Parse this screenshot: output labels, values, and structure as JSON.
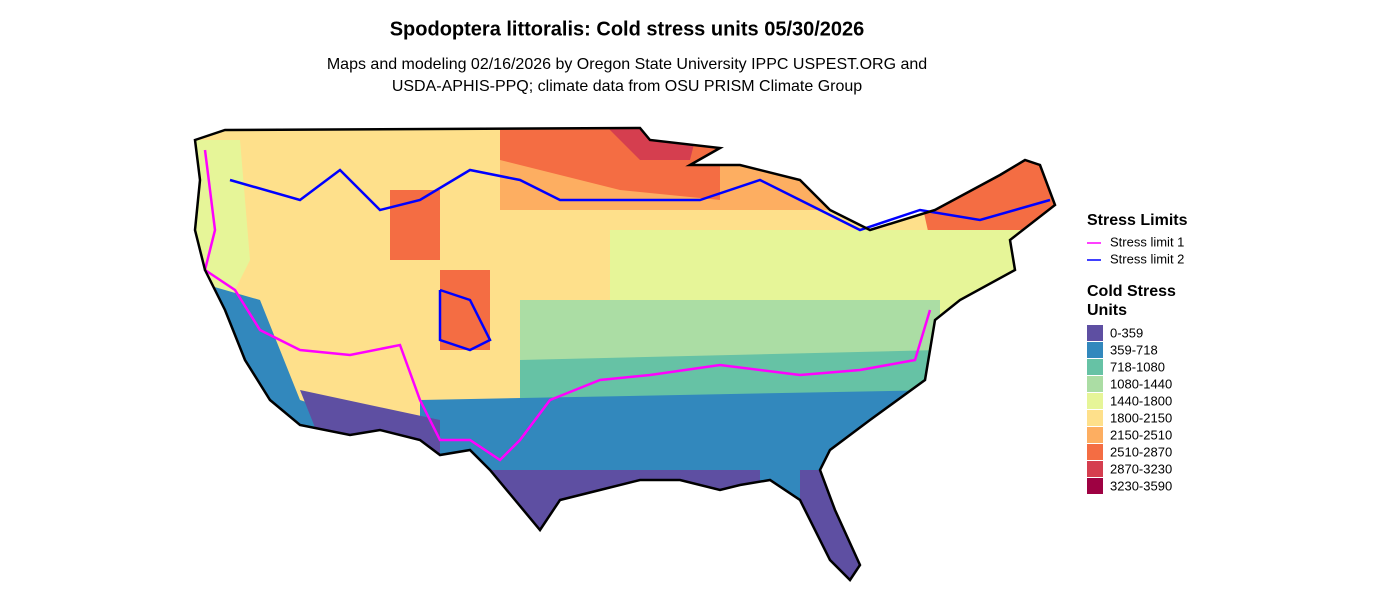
{
  "title": "Spodoptera littoralis: Cold stress units 05/30/2026",
  "subtitle": [
    "Maps and modeling 02/16/2026 by Oregon State University IPPC USPEST.ORG and",
    "USDA-APHIS-PPQ; climate data from OSU PRISM Climate Group"
  ],
  "legend_limits": {
    "title": "Stress Limits",
    "items": [
      {
        "label": "Stress limit 1",
        "color": "#ff00ff"
      },
      {
        "label": "Stress limit 2",
        "color": "#0000ff"
      }
    ]
  },
  "legend_units": {
    "title": [
      "Cold Stress",
      "Units"
    ],
    "items": [
      {
        "label": "0-359",
        "color": "#5e4fa2"
      },
      {
        "label": "359-718",
        "color": "#3288bd"
      },
      {
        "label": "718-1080",
        "color": "#66c2a5"
      },
      {
        "label": "1080-1440",
        "color": "#abdda4"
      },
      {
        "label": "1440-1800",
        "color": "#e6f598"
      },
      {
        "label": "1800-2150",
        "color": "#fee08b"
      },
      {
        "label": "2150-2510",
        "color": "#fdae61"
      },
      {
        "label": "2510-2870",
        "color": "#f46d43"
      },
      {
        "label": "2870-3230",
        "color": "#d53e4f"
      },
      {
        "label": "3230-3590",
        "color": "#9e0142"
      }
    ]
  }
}
